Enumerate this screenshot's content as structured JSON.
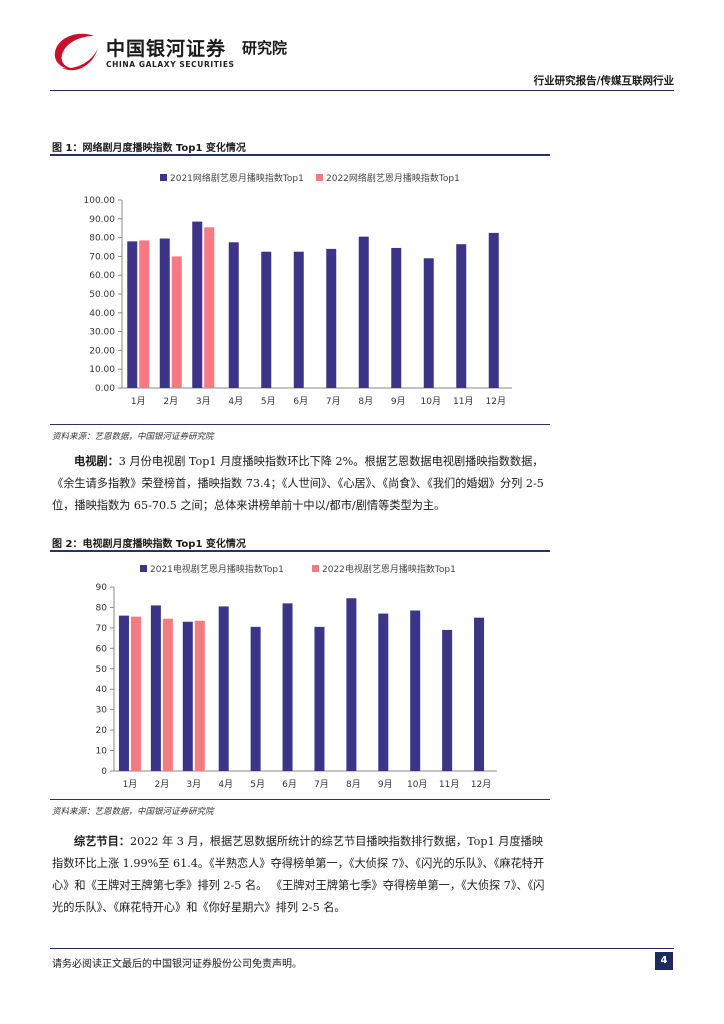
{
  "header": {
    "logo_cn": "中国银河证券",
    "logo_institute": "研究院",
    "logo_en": "CHINA GALAXY SECURITIES",
    "report_type": "行业研究报告/传媒互联网行业",
    "brand_color": "#c8102e"
  },
  "figure1": {
    "title": "图 1：网络剧月度播映指数 Top1 变化情况",
    "source": "资料来源：艺恩数据，中国银河证券研究院"
  },
  "figure2": {
    "title": "图 2：电视剧月度播映指数 Top1 变化情况",
    "source": "资料来源：艺恩数据，中国银河证券研究院"
  },
  "paragraphs": {
    "tv_lead": "电视剧：",
    "tv_text": "3 月份电视剧 Top1 月度播映指数环比下降 2%。根据艺恩数据电视剧播映指数数据，《余生请多指教》荣登榜首，播映指数 73.4；《人世间》、《心居》、《尚食》、《我们的婚姻》分列 2-5 位，播映指数为 65-70.5 之间；总体来讲榜单前十中以/都市/剧情等类型为主。",
    "variety_lead": "综艺节目：",
    "variety_text": "2022 年 3 月，根据艺恩数据所统计的综艺节目播映指数排行数据，Top1 月度播映指数环比上涨 1.99%至 61.4。《半熟恋人》夺得榜单第一，《大侦探 7》、《闪光的乐队》、《麻花特开心》和《王牌对王牌第七季》排列 2-5 名。 《王牌对王牌第七季》夺得榜单第一，《大侦探 7》、《闪光的乐队》、《麻花特开心》和《你好星期六》排列 2-5 名。"
  },
  "footer": {
    "disclaimer": "请务必阅读正文最后的中国银河证券股份公司免责声明。",
    "page_number": "4"
  },
  "chart_data": [
    {
      "type": "bar",
      "categories": [
        "1月",
        "2月",
        "3月",
        "4月",
        "5月",
        "6月",
        "7月",
        "8月",
        "9月",
        "10月",
        "11月",
        "12月"
      ],
      "series": [
        {
          "name": "2021网络剧艺恩月播映指数Top1",
          "color": "#3d3387",
          "values": [
            78,
            79.5,
            88.5,
            77.5,
            72.5,
            72.5,
            74,
            80.5,
            74.5,
            69,
            76.5,
            82.5
          ]
        },
        {
          "name": "2022网络剧艺恩月播映指数Top1",
          "color": "#f47b82",
          "values": [
            78.5,
            70,
            85.5,
            null,
            null,
            null,
            null,
            null,
            null,
            null,
            null,
            null
          ]
        }
      ],
      "ylim": [
        0,
        100
      ],
      "yticks": [
        "0.00",
        "10.00",
        "20.00",
        "30.00",
        "40.00",
        "50.00",
        "60.00",
        "70.00",
        "80.00",
        "90.00",
        "100.00"
      ],
      "legend": "top",
      "grid": false
    },
    {
      "type": "bar",
      "categories": [
        "1月",
        "2月",
        "3月",
        "4月",
        "5月",
        "6月",
        "7月",
        "8月",
        "9月",
        "10月",
        "11月",
        "12月"
      ],
      "series": [
        {
          "name": "2021电视剧艺恩月播映指数Top1",
          "color": "#3d3387",
          "values": [
            76,
            81,
            73,
            80.5,
            70.5,
            82,
            70.5,
            84.5,
            77,
            78.5,
            69,
            75
          ]
        },
        {
          "name": "2022电视剧艺恩月播映指数Top1",
          "color": "#f47b82",
          "values": [
            75.5,
            74.5,
            73.5,
            null,
            null,
            null,
            null,
            null,
            null,
            null,
            null,
            null
          ]
        }
      ],
      "ylim": [
        0,
        90
      ],
      "yticks": [
        "0",
        "10",
        "20",
        "30",
        "40",
        "50",
        "60",
        "70",
        "80",
        "90"
      ],
      "legend": "top",
      "grid": false
    }
  ]
}
